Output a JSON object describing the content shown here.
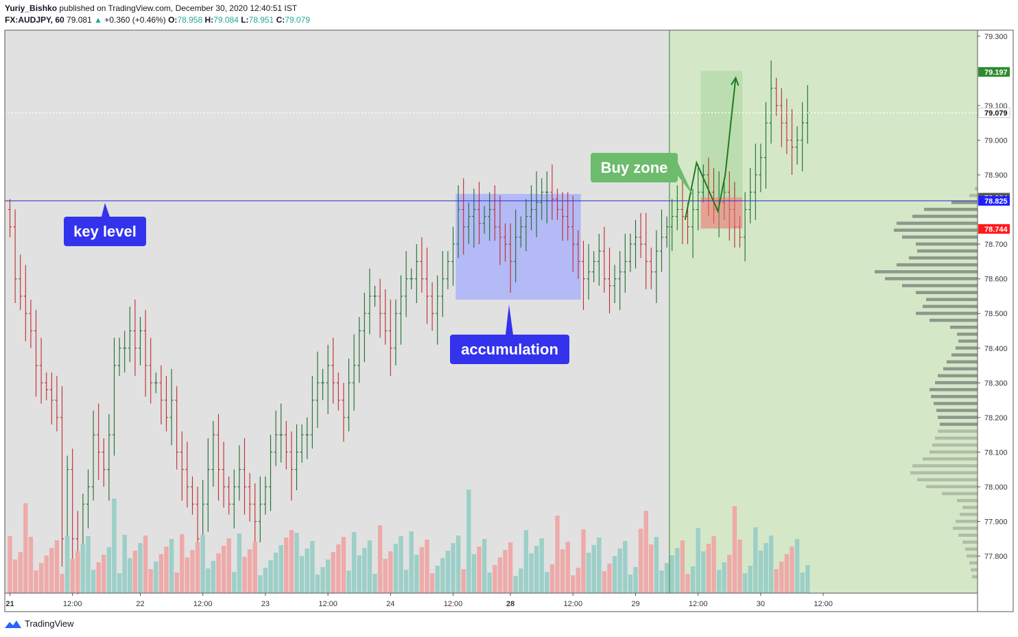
{
  "header": {
    "author": "Yuriy_Bishko",
    "published_text": "published on TradingView.com, December 30, 2020 12:40:51 IST",
    "symbol": "FX:AUDJPY, 60",
    "last": "79.081",
    "change": "+0.360 (+0.46%)",
    "open_label": "O:",
    "open": "78.958",
    "high_label": "H:",
    "high": "79.084",
    "low_label": "L:",
    "low": "78.951",
    "close_label": "C:",
    "close": "79.079"
  },
  "footer": {
    "brand": "TradingView"
  },
  "annotations": {
    "key_level": "key level",
    "accumulation": "accumulation",
    "buy_zone": "Buy zone"
  },
  "colors": {
    "up": "#26a69a",
    "up_wick": "#1b6b2a",
    "down": "#c0282b",
    "vol_up": "#9ccfc7",
    "vol_down": "#eeaaa9",
    "bg_gray": "#e1e1e1",
    "bg_green": "#d4e8c8",
    "key_level": "#2a2ac8",
    "accum_box": "#9aa5ff",
    "callout_blue": "#3333ee",
    "callout_green": "#6dbb6d",
    "buy_box": "#ef6a6a",
    "arrow": "#1e7a1e"
  },
  "chart_data": {
    "type": "candlestick",
    "y_axis": {
      "min": 77.72,
      "max": 79.32,
      "ticks": [
        "79.300",
        "79.100",
        "79.000",
        "78.900",
        "78.700",
        "78.600",
        "78.500",
        "78.400",
        "78.300",
        "78.200",
        "78.100",
        "78.000",
        "77.900",
        "77.800"
      ],
      "tick_values": [
        79.3,
        79.1,
        79.0,
        78.9,
        78.7,
        78.6,
        78.5,
        78.4,
        78.3,
        78.2,
        78.1,
        78.0,
        77.9,
        77.8
      ]
    },
    "x_axis": {
      "labels": [
        "21",
        "12:00",
        "22",
        "12:00",
        "23",
        "12:00",
        "24",
        "12:00",
        "28",
        "12:00",
        "29",
        "12:00",
        "30",
        "12:00"
      ],
      "label_bars": [
        0,
        12,
        25,
        37,
        49,
        61,
        73,
        85,
        96,
        108,
        120,
        132,
        144,
        156
      ],
      "bold": [
        true,
        false,
        false,
        false,
        false,
        false,
        false,
        false,
        true,
        false,
        false,
        false,
        false,
        false
      ]
    },
    "price_labels": [
      {
        "value": 79.197,
        "text": "79.197",
        "color": "#2e8b2e"
      },
      {
        "value": 79.079,
        "text": "79.079",
        "color": "#ffffff"
      },
      {
        "value": 78.834,
        "text": "78.834",
        "color": "#555555"
      },
      {
        "value": 78.825,
        "text": "78.825",
        "color": "#1f1fff"
      },
      {
        "value": 78.744,
        "text": "78.744",
        "color": "#ff1a1a"
      }
    ],
    "key_level": 78.825,
    "accumulation_box": {
      "bar_start": 85.5,
      "bar_end": 109.5,
      "top": 78.845,
      "bottom": 78.54
    },
    "green_region_start_bar": 126.5,
    "buy_zone_box": {
      "bar_start": 132.5,
      "bar_end": 140.5,
      "top": 78.835,
      "bottom": 78.745
    },
    "projection_box": {
      "bar_start": 132.5,
      "bar_end": 140.5,
      "top": 79.2,
      "bottom": 78.835
    },
    "arrow_path": [
      [
        129.5,
        78.77
      ],
      [
        131.7,
        78.935
      ],
      [
        135.8,
        78.795
      ],
      [
        137.2,
        78.9
      ],
      [
        139.2,
        79.18
      ]
    ],
    "closes": [
      78.75,
      78.6,
      78.55,
      78.5,
      78.45,
      78.35,
      78.3,
      78.28,
      78.25,
      78.2,
      77.85,
      78.05,
      77.85,
      77.75,
      77.95,
      78.0,
      78.15,
      78.1,
      78.05,
      78.15,
      78.35,
      78.4,
      78.4,
      78.45,
      78.4,
      78.45,
      78.35,
      78.3,
      78.3,
      78.25,
      78.2,
      78.25,
      78.1,
      78.05,
      78.0,
      77.95,
      77.85,
      77.95,
      78.05,
      78.15,
      78.05,
      78.0,
      77.95,
      78.0,
      78.05,
      78.0,
      77.95,
      77.9,
      77.95,
      78.0,
      78.1,
      78.15,
      78.15,
      78.1,
      78.05,
      78.1,
      78.15,
      78.15,
      78.25,
      78.3,
      78.3,
      78.35,
      78.3,
      78.25,
      78.2,
      78.3,
      78.35,
      78.45,
      78.5,
      78.55,
      78.55,
      78.5,
      78.45,
      78.4,
      78.5,
      78.55,
      78.6,
      78.6,
      78.65,
      78.6,
      78.55,
      78.5,
      78.55,
      78.6,
      78.65,
      78.7,
      78.8,
      78.75,
      78.78,
      78.8,
      78.76,
      78.78,
      78.8,
      78.75,
      78.72,
      78.7,
      78.65,
      78.72,
      78.75,
      78.78,
      78.8,
      78.82,
      78.85,
      78.85,
      78.83,
      78.8,
      78.78,
      78.75,
      78.7,
      78.65,
      78.6,
      78.62,
      78.65,
      78.68,
      78.6,
      78.58,
      78.6,
      78.62,
      78.65,
      78.7,
      78.72,
      78.7,
      78.65,
      78.62,
      78.68,
      78.72,
      78.75,
      78.78,
      78.8,
      78.78,
      78.75,
      78.8,
      78.85,
      78.9,
      78.85,
      78.8,
      78.82,
      78.85,
      78.8,
      78.75,
      78.72,
      78.8,
      78.85,
      78.9,
      78.95,
      79.05,
      79.15,
      79.1,
      79.05,
      79.0,
      78.98,
      79.0,
      79.05,
      79.079
    ]
  }
}
